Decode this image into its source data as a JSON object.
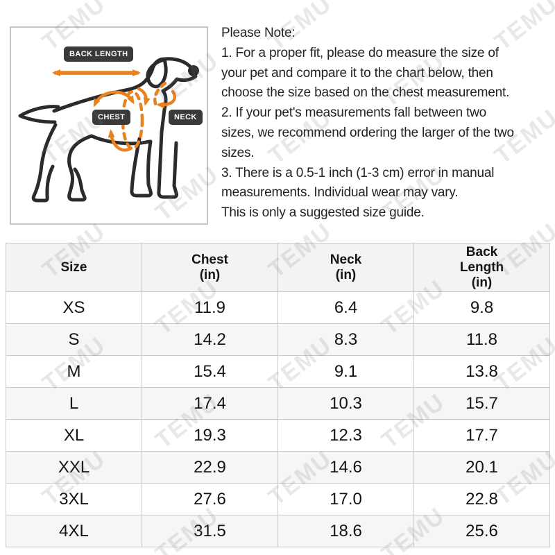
{
  "watermark": {
    "text": "TEMU"
  },
  "colors": {
    "accent": "#E8821F",
    "label_bg": "#3A3A3A",
    "dog_line": "#2B2B2B",
    "table_border": "#c9c9c9",
    "header_bg": "#f3f3f3",
    "row_alt_bg": "#f6f6f6"
  },
  "diagram": {
    "labels": {
      "back_length": "BACK LENGTH",
      "chest": "CHEST",
      "neck": "NECK"
    }
  },
  "note": {
    "lines": [
      "Please Note:",
      "1. For a proper fit, please do measure the size of",
      "your pet and compare it to the chart below, then",
      "choose the size based on the chest measurement.",
      "2. If your pet's measurements fall between two",
      "sizes, we recommend ordering the larger of the two",
      "sizes.",
      "3. There is a 0.5-1 inch (1-3 cm) error in manual",
      "measurements. Individual wear may vary.",
      "This is only a suggested size guide."
    ]
  },
  "table": {
    "columns": [
      {
        "key": "size",
        "lines": [
          "Size"
        ]
      },
      {
        "key": "chest",
        "lines": [
          "Chest",
          "(in)"
        ]
      },
      {
        "key": "neck",
        "lines": [
          "Neck",
          "(in)"
        ]
      },
      {
        "key": "back",
        "lines": [
          "Back",
          "Length",
          "(in)"
        ]
      }
    ],
    "rows": [
      {
        "size": "XS",
        "chest": "11.9",
        "neck": "6.4",
        "back": "9.8"
      },
      {
        "size": "S",
        "chest": "14.2",
        "neck": "8.3",
        "back": "11.8"
      },
      {
        "size": "M",
        "chest": "15.4",
        "neck": "9.1",
        "back": "13.8"
      },
      {
        "size": "L",
        "chest": "17.4",
        "neck": "10.3",
        "back": "15.7"
      },
      {
        "size": "XL",
        "chest": "19.3",
        "neck": "12.3",
        "back": "17.7"
      },
      {
        "size": "XXL",
        "chest": "22.9",
        "neck": "14.6",
        "back": "20.1"
      },
      {
        "size": "3XL",
        "chest": "27.6",
        "neck": "17.0",
        "back": "22.8"
      },
      {
        "size": "4XL",
        "chest": "31.5",
        "neck": "18.6",
        "back": "25.6"
      }
    ]
  }
}
